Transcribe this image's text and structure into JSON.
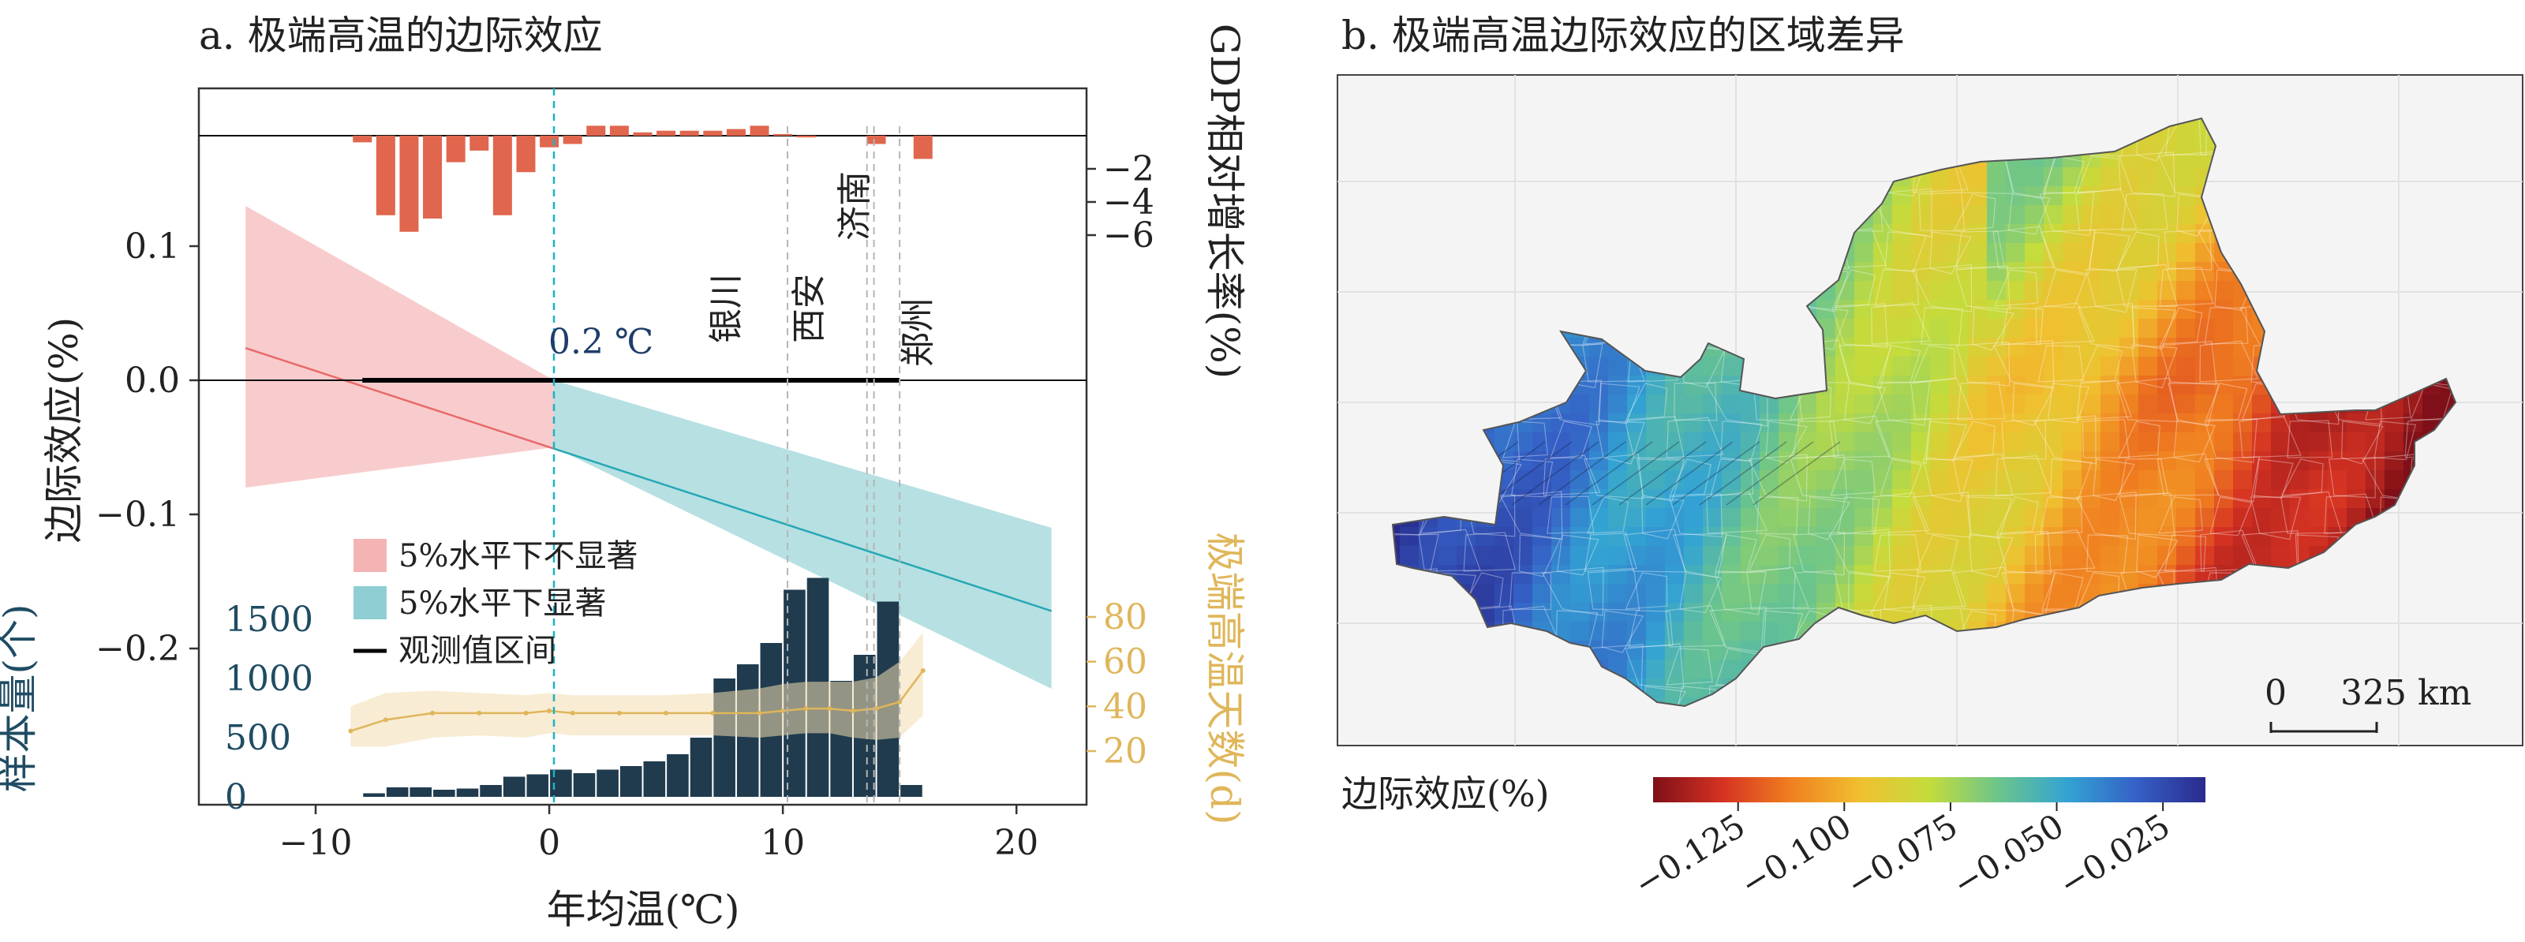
{
  "panel_a": {
    "title": "a. 极端高温的边际效应",
    "left_axis_label": "边际效应(%)",
    "right_top_axis_label": "GDP相对增长率(%)",
    "left_bottom_axis_label": "样本量(个)",
    "right_bottom_axis_label": "极端高温天数(d)",
    "x_axis_label": "年均温(℃)",
    "threshold_label": "0.2 ℃",
    "cities": [
      "银川",
      "西安",
      "济南",
      "郑州"
    ],
    "legend": [
      {
        "label": "5%水平下不显著",
        "color": "#f4b4b4"
      },
      {
        "label": "5%水平下显著",
        "color": "#8fcfd3"
      },
      {
        "label": "观测值区间",
        "color": "#000000"
      }
    ],
    "colors": {
      "not_significant": "#e86a6a",
      "significant": "#27a9b5",
      "gdp_bars": "#e0674d",
      "sample_bars": "#1f3b4d",
      "heat_days": "#e0b65a",
      "threshold": "#19b3c4"
    }
  },
  "chart_data": [
    {
      "type": "line",
      "x_ticks": [
        "−10",
        "0",
        "10",
        "20"
      ],
      "y_ticks": [
        "0.1",
        "0.0",
        "−0.1",
        "−0.2"
      ],
      "xlim": [
        -15,
        23
      ],
      "ylim": [
        -0.27,
        0.18
      ],
      "threshold_x": 0.2,
      "observed_range_x": [
        -8,
        15
      ],
      "effect_line": {
        "x": [
          -13,
          21.5
        ],
        "y": [
          0.024,
          -0.172
        ],
        "significant_from_x": 0.2
      },
      "ci_upper": {
        "x": [
          -13,
          0.2,
          21.5
        ],
        "y": [
          0.13,
          0.0,
          -0.11
        ]
      },
      "ci_lower": {
        "x": [
          -13,
          0.2,
          21.5
        ],
        "y": [
          -0.08,
          -0.05,
          -0.23
        ]
      },
      "city_lines_x": [
        10.2,
        13.6,
        13.9,
        15.0
      ]
    },
    {
      "type": "bar",
      "name": "GDP相对增长率",
      "y_ticks": [
        "−2",
        "−4",
        "−6"
      ],
      "ylim": [
        -8,
        1.5
      ],
      "x": [
        -8,
        -7,
        -6,
        -5,
        -4,
        -3,
        -2,
        -1,
        0,
        1,
        2,
        3,
        4,
        5,
        6,
        7,
        8,
        9,
        10,
        11,
        12,
        13,
        14,
        15,
        16
      ],
      "values": [
        -0.4,
        -4.8,
        -5.8,
        -5.0,
        -1.6,
        -0.9,
        -4.8,
        -2.2,
        -0.7,
        -0.5,
        0.6,
        0.6,
        0.2,
        0.3,
        0.3,
        0.3,
        0.4,
        0.6,
        0.1,
        -0.1,
        0.0,
        0.0,
        -0.5,
        0.0,
        -1.4
      ]
    },
    {
      "type": "bar",
      "name": "样本量",
      "y_ticks": [
        "1500",
        "1000",
        "500",
        "0"
      ],
      "ylim": [
        0,
        1850
      ],
      "x": [
        -7.5,
        -6.5,
        -5.5,
        -4.5,
        -3.5,
        -2.5,
        -1.5,
        -0.5,
        0.5,
        1.5,
        2.5,
        3.5,
        4.5,
        5.5,
        6.5,
        7.5,
        8.5,
        9.5,
        10.5,
        11.5,
        12.5,
        13.5,
        14.5,
        15.5
      ],
      "values": [
        30,
        80,
        80,
        60,
        70,
        100,
        170,
        190,
        230,
        200,
        230,
        260,
        300,
        360,
        500,
        1000,
        1120,
        1300,
        1750,
        1850,
        980,
        1200,
        1650,
        100
      ]
    },
    {
      "type": "area",
      "name": "极端高温天数",
      "y_ticks": [
        "80",
        "60",
        "40",
        "20"
      ],
      "ylim": [
        0,
        112
      ],
      "x": [
        -8.5,
        -7,
        -5,
        -3,
        -1,
        0,
        1,
        3,
        5,
        7,
        9,
        10,
        11,
        12,
        13,
        14,
        15,
        16
      ],
      "values": [
        29,
        34,
        37,
        37,
        37,
        38,
        37,
        37,
        37,
        37,
        37,
        38,
        39,
        39,
        38,
        39,
        42,
        56
      ],
      "upper": [
        40,
        46,
        47,
        46,
        45,
        46,
        45,
        45,
        45,
        46,
        48,
        50,
        51,
        51,
        51,
        53,
        60,
        73
      ],
      "lower": [
        22,
        22,
        26,
        27,
        26,
        28,
        27,
        27,
        27,
        27,
        26,
        27,
        28,
        28,
        26,
        25,
        26,
        36
      ]
    },
    {
      "type": "heatmap",
      "title": "b. 极端高温边际效应的区域差异",
      "colorbar_label": "边际效应(%)",
      "colorbar_ticks": [
        "−0.125",
        "−0.100",
        "−0.075",
        "−0.050",
        "−0.025"
      ],
      "range": [
        -0.145,
        -0.015
      ],
      "colormap": [
        "#7f0f18",
        "#d53222",
        "#f08020",
        "#f0c030",
        "#c4dc3c",
        "#6cc58b",
        "#33a3d3",
        "#3561c6",
        "#2a2a8c"
      ],
      "scalebar": [
        "0",
        "325 km"
      ]
    }
  ]
}
